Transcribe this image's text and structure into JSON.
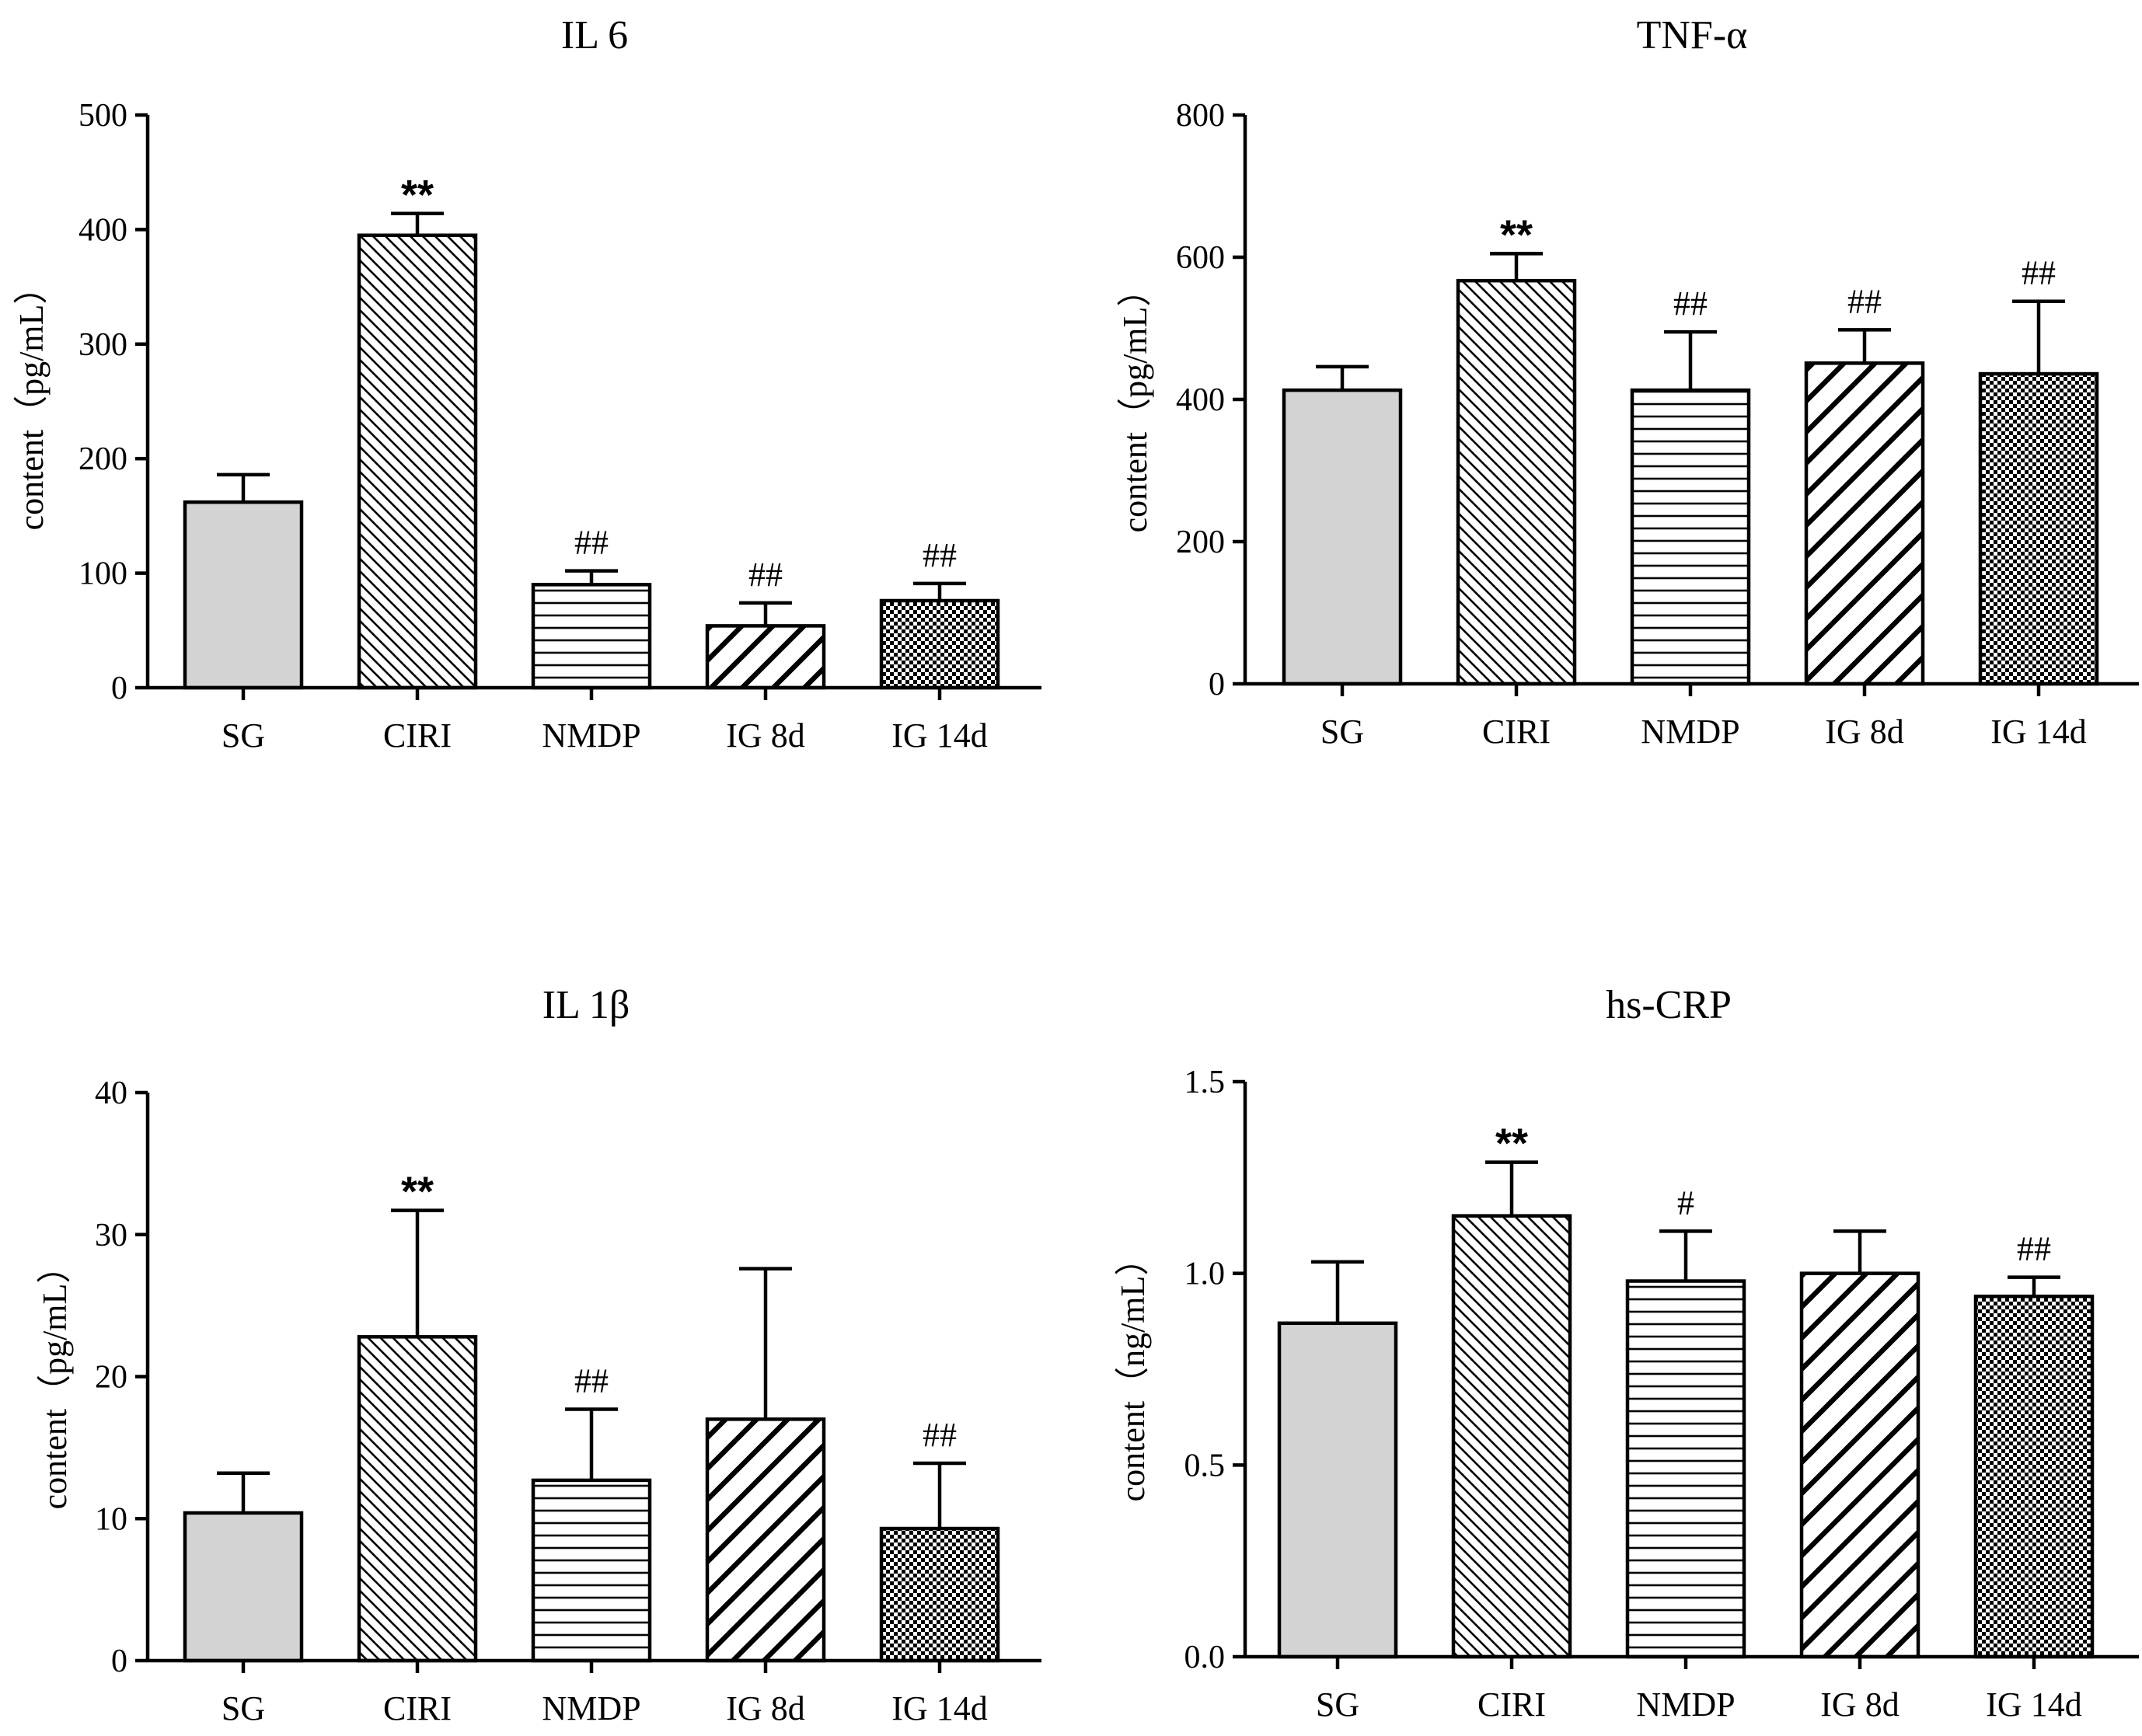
{
  "chart_data": [
    {
      "type": "bar",
      "title": "IL 6",
      "ylabel": "content（pg/mL）",
      "xlabel": "",
      "categories": [
        "SG",
        "CIRI",
        "NMDP",
        "IG 8d",
        "IG 14d"
      ],
      "values": [
        162,
        395,
        90,
        54,
        76
      ],
      "errors": [
        24,
        19,
        12,
        20,
        15
      ],
      "annotations": [
        "",
        "**",
        "##",
        "##",
        "##"
      ],
      "patterns": [
        "solid",
        "diag-back",
        "horizontal",
        "diag-forward",
        "checker"
      ],
      "ylim": [
        0,
        500
      ],
      "yticks": [
        0,
        100,
        200,
        300,
        400,
        500
      ],
      "ytick_labels": [
        "0",
        "100",
        "200",
        "300",
        "400",
        "500"
      ]
    },
    {
      "type": "bar",
      "title": "TNF-α",
      "ylabel": "content（pg/mL）",
      "xlabel": "",
      "categories": [
        "SG",
        "CIRI",
        "NMDP",
        "IG 8d",
        "IG 14d"
      ],
      "values": [
        413,
        567,
        413,
        451,
        436
      ],
      "errors": [
        33,
        38,
        82,
        47,
        102
      ],
      "annotations": [
        "",
        "**",
        "##",
        "##",
        "##"
      ],
      "patterns": [
        "solid",
        "diag-back",
        "horizontal",
        "diag-forward",
        "checker"
      ],
      "ylim": [
        0,
        800
      ],
      "yticks": [
        0,
        200,
        400,
        600,
        800
      ],
      "ytick_labels": [
        "0",
        "200",
        "400",
        "600",
        "800"
      ]
    },
    {
      "type": "bar",
      "title": "IL 1β",
      "ylabel": "content（pg/mL）",
      "xlabel": "",
      "categories": [
        "SG",
        "CIRI",
        "NMDP",
        "IG 8d",
        "IG 14d"
      ],
      "values": [
        10.4,
        22.8,
        12.7,
        17.0,
        9.3
      ],
      "errors": [
        2.8,
        8.9,
        5.0,
        10.6,
        4.6
      ],
      "annotations": [
        "",
        "**",
        "##",
        "",
        "##"
      ],
      "patterns": [
        "solid",
        "diag-back",
        "horizontal",
        "diag-forward",
        "checker"
      ],
      "ylim": [
        0,
        40
      ],
      "yticks": [
        0,
        10,
        20,
        30,
        40
      ],
      "ytick_labels": [
        "0",
        "10",
        "20",
        "30",
        "40"
      ]
    },
    {
      "type": "bar",
      "title": "hs-CRP",
      "ylabel": "content（ng/mL）",
      "xlabel": "",
      "categories": [
        "SG",
        "CIRI",
        "NMDP",
        "IG 8d",
        "IG 14d"
      ],
      "values": [
        0.87,
        1.15,
        0.98,
        1.0,
        0.94
      ],
      "errors": [
        0.16,
        0.14,
        0.13,
        0.11,
        0.05
      ],
      "annotations": [
        "",
        "**",
        "#",
        "",
        "##"
      ],
      "patterns": [
        "solid",
        "diag-back",
        "horizontal",
        "diag-forward",
        "checker"
      ],
      "ylim": [
        0,
        1.5
      ],
      "yticks": [
        0,
        0.5,
        1.0,
        1.5
      ],
      "ytick_labels": [
        "0.0",
        "0.5",
        "1.0",
        "1.5"
      ]
    }
  ]
}
